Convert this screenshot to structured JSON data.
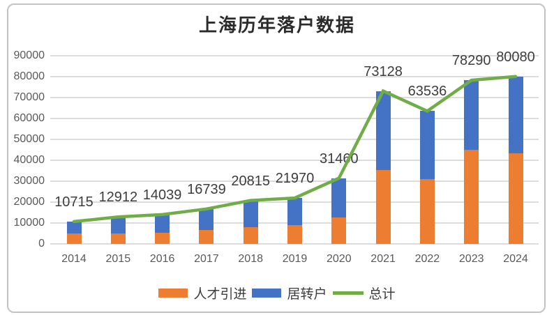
{
  "colors": {
    "talent_bar": "#ED7D31",
    "residence_bar": "#4472C4",
    "total_line": "#70AD47",
    "gridline": "#DCDCDC",
    "axis_text": "#595959",
    "data_label_text": "#3D3D3D",
    "title_text": "#2B2B2B",
    "frame_border": "#C3C3C3"
  },
  "chart_data": {
    "type": "bar",
    "subtype": "stacked-bars-with-total-line",
    "title": "上海历年落户数据",
    "categories": [
      "2014",
      "2015",
      "2016",
      "2017",
      "2018",
      "2019",
      "2020",
      "2021",
      "2022",
      "2023",
      "2024"
    ],
    "series": [
      {
        "name": "人才引进",
        "kind": "bar",
        "color": "#ED7D31",
        "values": [
          5000,
          5100,
          5400,
          6600,
          8100,
          8900,
          12800,
          35400,
          31000,
          44900,
          43200
        ]
      },
      {
        "name": "居转户",
        "kind": "bar",
        "color": "#4472C4",
        "values": [
          5715,
          7812,
          8639,
          10139,
          12715,
          13070,
          18660,
          37728,
          32536,
          33390,
          36880
        ]
      },
      {
        "name": "总计",
        "kind": "line",
        "color": "#70AD47",
        "values": [
          10715,
          12912,
          14039,
          16739,
          20815,
          21970,
          31460,
          73128,
          63536,
          78290,
          80080
        ]
      }
    ],
    "data_labels": [
      "10715",
      "12912",
      "14039",
      "16739",
      "20815",
      "21970",
      "31460",
      "73128",
      "63536",
      "78290",
      "80080"
    ],
    "xlabel": "",
    "ylabel": "",
    "ylim": [
      0,
      90000
    ],
    "ytick_step": 10000,
    "ytick_labels": [
      "0",
      "10000",
      "20000",
      "30000",
      "40000",
      "50000",
      "60000",
      "70000",
      "80000",
      "90000"
    ],
    "grid": true,
    "legend_position": "bottom"
  }
}
